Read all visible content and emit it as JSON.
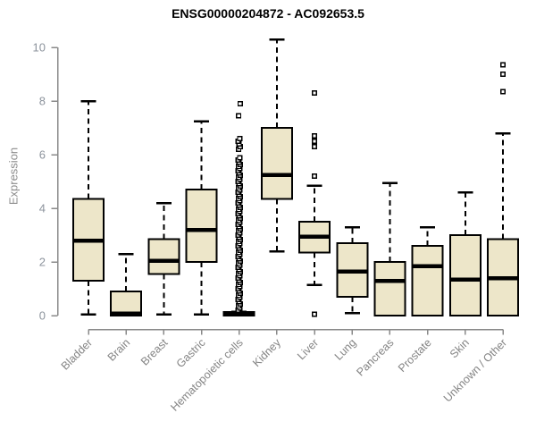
{
  "colors": {
    "background": "#FFFFFF",
    "title": "#000000",
    "box_fill": "#EDE6C9",
    "box_border": "#000000",
    "median": "#000000",
    "whisker": "#000000",
    "outlier": "#000000",
    "axis": "#8A8A8A",
    "tick_label": "#8C939C",
    "category_label": "#848484"
  },
  "chart_data": {
    "type": "boxplot",
    "title": "ENSG00000204872 - AC092653.5",
    "ylabel": "Expression",
    "xlabel": "",
    "ylim": [
      0,
      10
    ],
    "yticks": [
      0,
      2,
      4,
      6,
      8,
      10
    ],
    "grid": false,
    "legend": false,
    "categories": [
      "Bladder",
      "Brain",
      "Breast",
      "Gastric",
      "Hematopoietic cells",
      "Kidney",
      "Liver",
      "Lung",
      "Pancreas",
      "Prostate",
      "Skin",
      "Unknown / Other"
    ],
    "boxes": [
      {
        "category": "Bladder",
        "whisker_low": 0.05,
        "q1": 1.3,
        "median": 2.8,
        "q3": 4.35,
        "whisker_high": 8.0,
        "outliers": []
      },
      {
        "category": "Brain",
        "whisker_low": 0.0,
        "q1": 0.0,
        "median": 0.07,
        "q3": 0.9,
        "whisker_high": 2.3,
        "outliers": []
      },
      {
        "category": "Breast",
        "whisker_low": 0.05,
        "q1": 1.55,
        "median": 2.05,
        "q3": 2.85,
        "whisker_high": 4.2,
        "outliers": []
      },
      {
        "category": "Gastric",
        "whisker_low": 0.05,
        "q1": 2.0,
        "median": 3.2,
        "q3": 4.7,
        "whisker_high": 7.25,
        "outliers": []
      },
      {
        "category": "Hematopoietic cells",
        "whisker_low": 0.0,
        "q1": 0.0,
        "median": 0.05,
        "q3": 0.13,
        "whisker_high": 0.15,
        "outliers": [
          0.2,
          0.28,
          0.36,
          0.44,
          0.52,
          0.6,
          0.68,
          0.76,
          0.84,
          0.92,
          1.0,
          1.08,
          1.16,
          1.24,
          1.32,
          1.4,
          1.48,
          1.56,
          1.64,
          1.72,
          1.8,
          1.88,
          1.96,
          2.04,
          2.12,
          2.2,
          2.28,
          2.36,
          2.44,
          2.52,
          2.6,
          2.68,
          2.76,
          2.84,
          2.92,
          3.0,
          3.08,
          3.16,
          3.24,
          3.32,
          3.4,
          3.48,
          3.56,
          3.64,
          3.72,
          3.8,
          3.88,
          3.96,
          4.04,
          4.12,
          4.2,
          4.28,
          4.36,
          4.44,
          4.52,
          4.6,
          4.68,
          4.76,
          4.84,
          4.92,
          5.0,
          5.08,
          5.16,
          5.24,
          5.32,
          5.4,
          5.48,
          5.56,
          5.64,
          5.72,
          5.8,
          5.88,
          6.2,
          6.3,
          6.4,
          6.5,
          6.6,
          7.45,
          7.9
        ]
      },
      {
        "category": "Kidney",
        "whisker_low": 2.4,
        "q1": 4.35,
        "median": 5.25,
        "q3": 7.0,
        "whisker_high": 10.3,
        "outliers": []
      },
      {
        "category": "Liver",
        "whisker_low": 1.15,
        "q1": 2.35,
        "median": 2.95,
        "q3": 3.5,
        "whisker_high": 4.85,
        "outliers": [
          8.3,
          6.7,
          6.5,
          6.3,
          5.2,
          0.05
        ]
      },
      {
        "category": "Lung",
        "whisker_low": 0.1,
        "q1": 0.7,
        "median": 1.65,
        "q3": 2.7,
        "whisker_high": 3.3,
        "outliers": []
      },
      {
        "category": "Pancreas",
        "whisker_low": 0.0,
        "q1": 0.0,
        "median": 1.3,
        "q3": 2.0,
        "whisker_high": 4.95,
        "outliers": []
      },
      {
        "category": "Prostate",
        "whisker_low": 0.0,
        "q1": 0.0,
        "median": 1.85,
        "q3": 2.6,
        "whisker_high": 3.3,
        "outliers": []
      },
      {
        "category": "Skin",
        "whisker_low": 0.0,
        "q1": 0.0,
        "median": 1.35,
        "q3": 3.0,
        "whisker_high": 4.6,
        "outliers": []
      },
      {
        "category": "Unknown / Other",
        "whisker_low": 0.0,
        "q1": 0.0,
        "median": 1.4,
        "q3": 2.85,
        "whisker_high": 6.8,
        "outliers": [
          9.35,
          9.0,
          8.35
        ]
      }
    ]
  }
}
